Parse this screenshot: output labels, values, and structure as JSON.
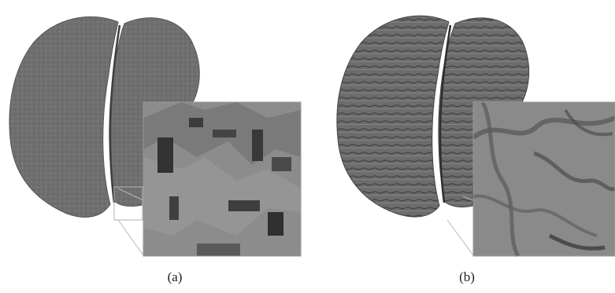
{
  "figure": {
    "panels": [
      {
        "id": "a",
        "caption": "(a)",
        "surface": "voxelized-blocky",
        "zoom_inset": true
      },
      {
        "id": "b",
        "caption": "(b)",
        "surface": "smooth-mesh",
        "zoom_inset": true
      }
    ],
    "colors": {
      "brain": "#6e6e6e",
      "brain_dark": "#4a4a4a",
      "brain_light": "#8e8e8e",
      "inset_bg": "#8a8a8a",
      "leader_line": "#b8b8b8"
    }
  }
}
